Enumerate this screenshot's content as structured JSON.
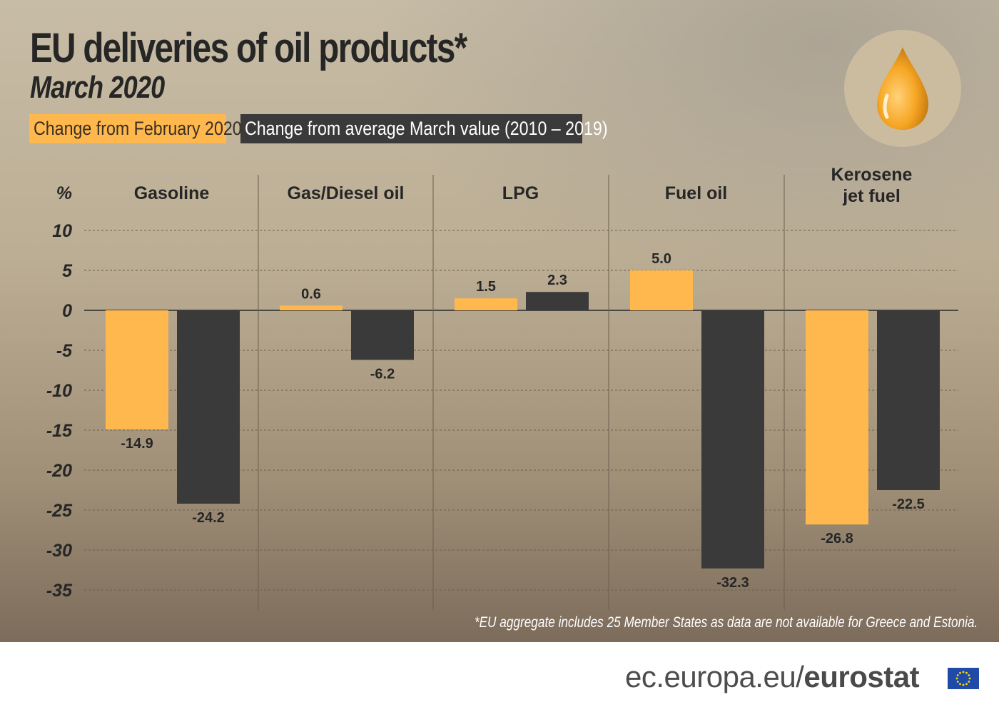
{
  "title": "EU deliveries of oil products*",
  "subtitle": "March 2020",
  "legend": {
    "series_a": "Change from February 2020",
    "series_b": "Change from average March value (2010 – 2019)"
  },
  "colors": {
    "series_a": "#ffb84d",
    "series_b": "#3a3a3a",
    "text": "#262626"
  },
  "icon": "oil-drop-icon",
  "chart_data": {
    "type": "bar",
    "ylabel": "%",
    "ylim": [
      -35,
      10
    ],
    "yticks": [
      10,
      5,
      0,
      -5,
      -10,
      -15,
      -20,
      -25,
      -30,
      -35
    ],
    "categories": [
      [
        "Gasoline"
      ],
      [
        "Gas/Diesel oil"
      ],
      [
        "LPG"
      ],
      [
        "Fuel oil"
      ],
      [
        "Kerosene",
        "jet fuel"
      ]
    ],
    "series": [
      {
        "name": "Change from February 2020",
        "values": [
          -14.9,
          0.6,
          1.5,
          5.0,
          -26.8
        ],
        "labels": [
          "-14.9",
          "0.6",
          "1.5",
          "5.0",
          "-26.8"
        ]
      },
      {
        "name": "Change from average March value (2010 – 2019)",
        "values": [
          -24.2,
          -6.2,
          2.3,
          -32.3,
          -22.5
        ],
        "labels": [
          "-24.2",
          "-6.2",
          "2.3",
          "-32.3",
          "-22.5"
        ]
      }
    ],
    "grid": true
  },
  "footnote": "*EU aggregate includes 25 Member States as data are not available for Greece and Estonia.",
  "brand": {
    "site": "ec.europa.eu/",
    "name": "eurostat"
  }
}
